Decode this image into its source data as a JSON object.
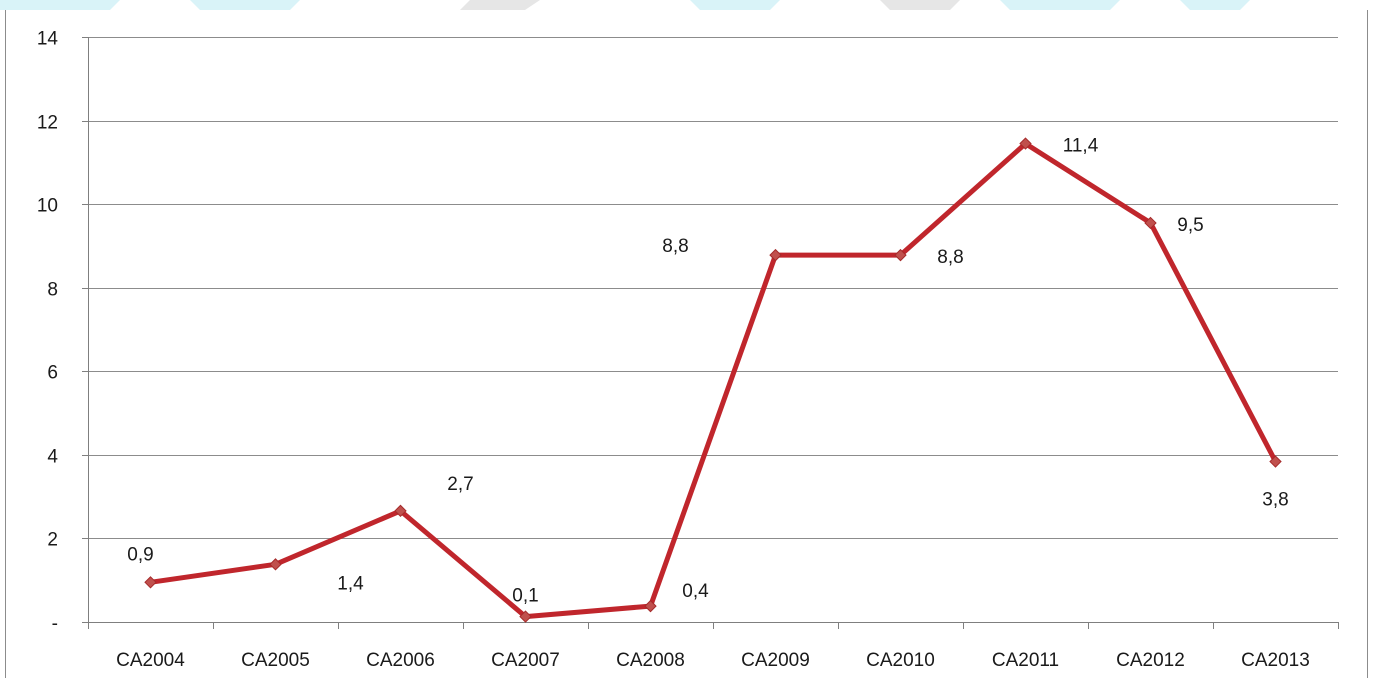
{
  "chart_data": {
    "type": "line",
    "title": "",
    "xlabel": "",
    "ylabel": "",
    "categories": [
      "CA2004",
      "CA2005",
      "CA2006",
      "CA2007",
      "CA2008",
      "CA2009",
      "CA2010",
      "CA2011",
      "CA2012",
      "CA2013"
    ],
    "series": [
      {
        "values": [
          0.95,
          1.38,
          2.66,
          0.13,
          0.38,
          8.78,
          8.78,
          11.45,
          9.55,
          3.84
        ],
        "labels": [
          "0,9",
          "1,4",
          "2,7",
          "0,1",
          "0,4",
          "8,8",
          "8,8",
          "11,4",
          "9,5",
          "3,8"
        ]
      }
    ],
    "ylim": [
      0,
      14
    ],
    "yticks": [
      0,
      2,
      4,
      6,
      8,
      10,
      12,
      14
    ],
    "ytick_labels": [
      "-",
      "2",
      "4",
      "6",
      "8",
      "10",
      "12",
      "14"
    ],
    "grid": true,
    "legend": "none",
    "colors": {
      "line": "#c0262c",
      "marker": "#c0504d",
      "grid": "#8c8c8c",
      "axis": "#7f7f7f",
      "background_band": "#d9f3f8"
    }
  }
}
